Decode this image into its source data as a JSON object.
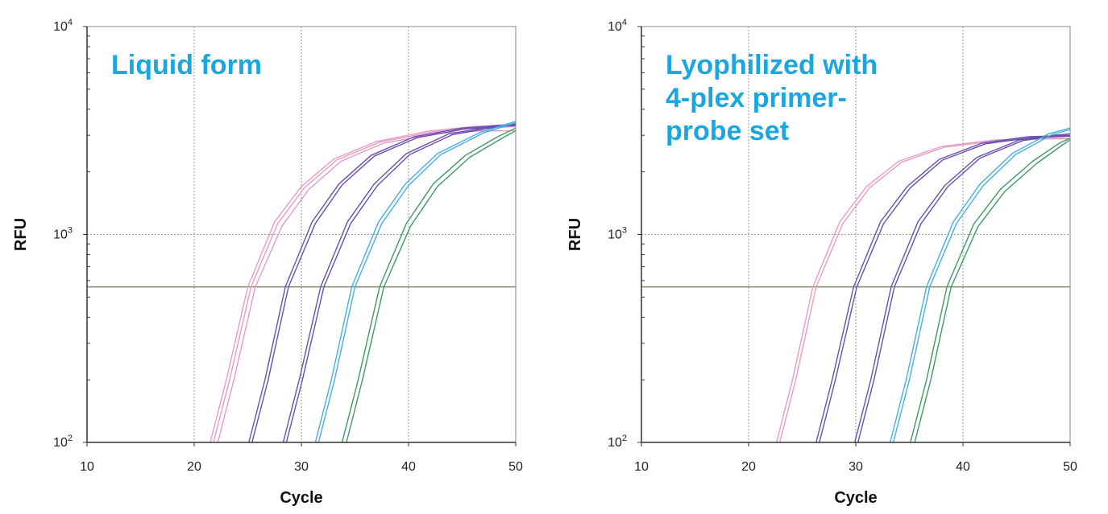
{
  "colors": {
    "accent_title": "#1ba6de",
    "threshold": "#7a8a6c",
    "grid": "#9a9a9a",
    "axis": "#333333",
    "series_colors": [
      "#e79bc8",
      "#6a4fae",
      "#48aee0",
      "#3f9a62"
    ]
  },
  "chart_data": [
    {
      "type": "line",
      "panel_label": [
        "Liquid form"
      ],
      "xlabel": "Cycle",
      "ylabel": "RFU",
      "xlim": [
        10,
        50
      ],
      "ylim": [
        100,
        10000
      ],
      "yscale": "log",
      "x_ticks": [
        "10",
        "20",
        "30",
        "40",
        "50"
      ],
      "y_ticks": [
        {
          "base": "10",
          "exp": "2"
        },
        {
          "base": "10",
          "exp": "3"
        },
        {
          "base": "10",
          "exp": "4"
        }
      ],
      "grid": true,
      "threshold": 560,
      "series": [
        {
          "x": [
            21.5,
            23,
            25,
            27.5,
            30,
            33,
            37,
            42,
            46,
            50
          ],
          "values": [
            100,
            200,
            560,
            1150,
            1700,
            2300,
            2800,
            3150,
            3300,
            3350
          ]
        },
        {
          "x": [
            21.8,
            23.3,
            25.3,
            27.8,
            30.3,
            33.3,
            37.3,
            42.3,
            46.3,
            50
          ],
          "values": [
            100,
            200,
            560,
            1130,
            1680,
            2280,
            2780,
            3120,
            3250,
            3300
          ]
        },
        {
          "x": [
            22.2,
            23.7,
            25.7,
            28.2,
            30.7,
            33.7,
            37.7,
            42.7,
            46.7,
            50
          ],
          "values": [
            100,
            200,
            560,
            1100,
            1650,
            2250,
            2750,
            3060,
            3150,
            3150
          ]
        },
        {
          "x": [
            25.1,
            26.6,
            28.5,
            31,
            33.5,
            36.5,
            40.5,
            45,
            50
          ],
          "values": [
            100,
            200,
            560,
            1150,
            1750,
            2400,
            2950,
            3250,
            3400
          ]
        },
        {
          "x": [
            25.4,
            26.9,
            28.8,
            31.3,
            33.8,
            36.8,
            40.8,
            45.3,
            50
          ],
          "values": [
            100,
            200,
            560,
            1130,
            1730,
            2380,
            2920,
            3220,
            3350
          ]
        },
        {
          "x": [
            28.3,
            29.8,
            31.8,
            34.3,
            36.8,
            39.8,
            43.8,
            48,
            50
          ],
          "values": [
            100,
            200,
            560,
            1150,
            1750,
            2450,
            3050,
            3320,
            3380
          ]
        },
        {
          "x": [
            28.6,
            30.1,
            32.1,
            34.6,
            37.1,
            40.1,
            44.1,
            48.3,
            50
          ],
          "values": [
            100,
            200,
            560,
            1130,
            1720,
            2420,
            3020,
            3300,
            3340
          ]
        },
        {
          "x": [
            31.3,
            32.8,
            34.7,
            37.2,
            39.7,
            42.7,
            46.7,
            50
          ],
          "values": [
            100,
            200,
            560,
            1150,
            1750,
            2450,
            3100,
            3500
          ]
        },
        {
          "x": [
            31.6,
            33.1,
            35,
            37.5,
            40,
            43,
            47,
            50
          ],
          "values": [
            100,
            200,
            560,
            1130,
            1720,
            2420,
            3080,
            3450
          ]
        },
        {
          "x": [
            33.8,
            35.3,
            37.3,
            39.8,
            42.3,
            45.3,
            48.3,
            50
          ],
          "values": [
            100,
            200,
            560,
            1130,
            1750,
            2400,
            2950,
            3250
          ]
        },
        {
          "x": [
            34.2,
            35.7,
            37.7,
            40.2,
            42.7,
            45.7,
            48.7,
            50
          ],
          "values": [
            100,
            200,
            560,
            1100,
            1700,
            2350,
            2900,
            3150
          ]
        }
      ]
    },
    {
      "type": "line",
      "panel_label": [
        "Lyophilized with",
        "4-plex primer-",
        "probe set"
      ],
      "xlabel": "Cycle",
      "ylabel": "RFU",
      "xlim": [
        10,
        50
      ],
      "ylim": [
        100,
        10000
      ],
      "yscale": "log",
      "x_ticks": [
        "10",
        "20",
        "30",
        "40",
        "50"
      ],
      "y_ticks": [
        {
          "base": "10",
          "exp": "2"
        },
        {
          "base": "10",
          "exp": "3"
        },
        {
          "base": "10",
          "exp": "4"
        }
      ],
      "grid": true,
      "threshold": 560,
      "series": [
        {
          "x": [
            22.6,
            24.1,
            26,
            28.5,
            31,
            34,
            38,
            43,
            47,
            50
          ],
          "values": [
            100,
            200,
            560,
            1150,
            1700,
            2250,
            2650,
            2850,
            2900,
            2900
          ]
        },
        {
          "x": [
            22.9,
            24.4,
            26.3,
            28.8,
            31.3,
            34.3,
            38.3,
            43.3,
            47.3,
            50
          ],
          "values": [
            100,
            200,
            560,
            1130,
            1680,
            2230,
            2630,
            2830,
            2880,
            2880
          ]
        },
        {
          "x": [
            26.3,
            27.8,
            29.8,
            32.3,
            34.8,
            37.8,
            41.8,
            46,
            50
          ],
          "values": [
            100,
            200,
            560,
            1150,
            1700,
            2300,
            2750,
            2950,
            3000
          ]
        },
        {
          "x": [
            26.6,
            28.1,
            30.1,
            32.6,
            35.1,
            38.1,
            42.1,
            46.3,
            50
          ],
          "values": [
            100,
            200,
            560,
            1130,
            1680,
            2280,
            2730,
            2920,
            2970
          ]
        },
        {
          "x": [
            29.9,
            31.4,
            33.3,
            35.8,
            38.3,
            41.3,
            45.3,
            48.5,
            50
          ],
          "values": [
            100,
            200,
            560,
            1150,
            1720,
            2350,
            2850,
            3000,
            3050
          ]
        },
        {
          "x": [
            30.2,
            31.7,
            33.6,
            36.1,
            38.6,
            41.6,
            45.6,
            48.8,
            50
          ],
          "values": [
            100,
            200,
            560,
            1130,
            1700,
            2330,
            2830,
            2980,
            3000
          ]
        },
        {
          "x": [
            33.2,
            34.7,
            36.6,
            39.1,
            41.6,
            44.6,
            48,
            50
          ],
          "values": [
            100,
            200,
            560,
            1150,
            1750,
            2450,
            3050,
            3250
          ]
        },
        {
          "x": [
            33.5,
            35,
            36.9,
            39.4,
            41.9,
            44.9,
            48.3,
            50
          ],
          "values": [
            100,
            200,
            560,
            1130,
            1720,
            2420,
            3020,
            3200
          ]
        },
        {
          "x": [
            35.1,
            36.6,
            38.5,
            41,
            43.5,
            46.5,
            49,
            50
          ],
          "values": [
            100,
            200,
            560,
            1120,
            1650,
            2250,
            2750,
            2900
          ]
        },
        {
          "x": [
            35.5,
            37,
            38.9,
            41.4,
            43.9,
            46.9,
            49.3,
            50
          ],
          "values": [
            100,
            200,
            560,
            1090,
            1610,
            2200,
            2700,
            2850
          ]
        }
      ]
    }
  ]
}
